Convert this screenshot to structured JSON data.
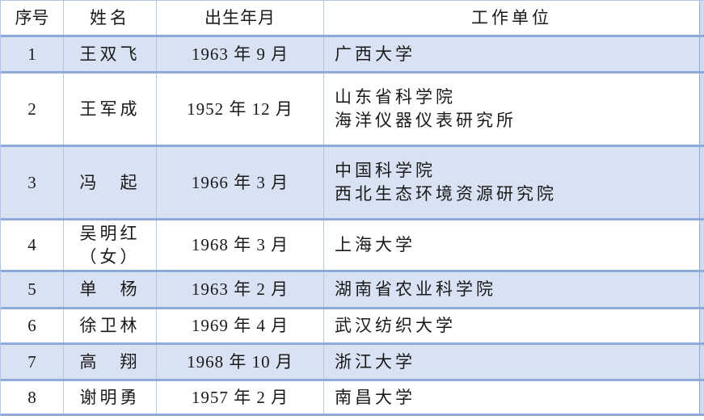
{
  "table": {
    "columns": [
      {
        "key": "seq",
        "label": "序号"
      },
      {
        "key": "name",
        "label": "姓名"
      },
      {
        "key": "birth",
        "label": "出生年月"
      },
      {
        "key": "unit",
        "label": "工作单位"
      }
    ],
    "rows": [
      {
        "seq": "1",
        "name_lines": [
          "王双飞"
        ],
        "birth": "1963 年 9 月",
        "unit_lines": [
          "广西大学"
        ]
      },
      {
        "seq": "2",
        "name_lines": [
          "王军成"
        ],
        "birth": "1952 年 12 月",
        "unit_lines": [
          "山东省科学院",
          "海洋仪器仪表研究所"
        ]
      },
      {
        "seq": "3",
        "name_lines": [
          "冯　起"
        ],
        "birth": "1966 年 3 月",
        "unit_lines": [
          "中国科学院",
          "西北生态环境资源研究院"
        ]
      },
      {
        "seq": "4",
        "name_lines": [
          "吴明红",
          "（女）"
        ],
        "birth": "1968 年 3 月",
        "unit_lines": [
          "上海大学"
        ]
      },
      {
        "seq": "5",
        "name_lines": [
          "单　杨"
        ],
        "birth": "1963 年 2 月",
        "unit_lines": [
          "湖南省农业科学院"
        ]
      },
      {
        "seq": "6",
        "name_lines": [
          "徐卫林"
        ],
        "birth": "1969 年 4 月",
        "unit_lines": [
          "武汉纺织大学"
        ]
      },
      {
        "seq": "7",
        "name_lines": [
          "高　翔"
        ],
        "birth": "1968 年 10 月",
        "unit_lines": [
          "浙江大学"
        ]
      },
      {
        "seq": "8",
        "name_lines": [
          "谢明勇"
        ],
        "birth": "1957 年 2 月",
        "unit_lines": [
          "南昌大学"
        ]
      }
    ],
    "colors": {
      "row_separator_border": "#8EAADB",
      "grid_border": "#B4C6E7",
      "banded_row_fill": "#D9E2F3",
      "right_edge_strip": "#CDDAEF",
      "text": "#1A1A1A"
    }
  }
}
